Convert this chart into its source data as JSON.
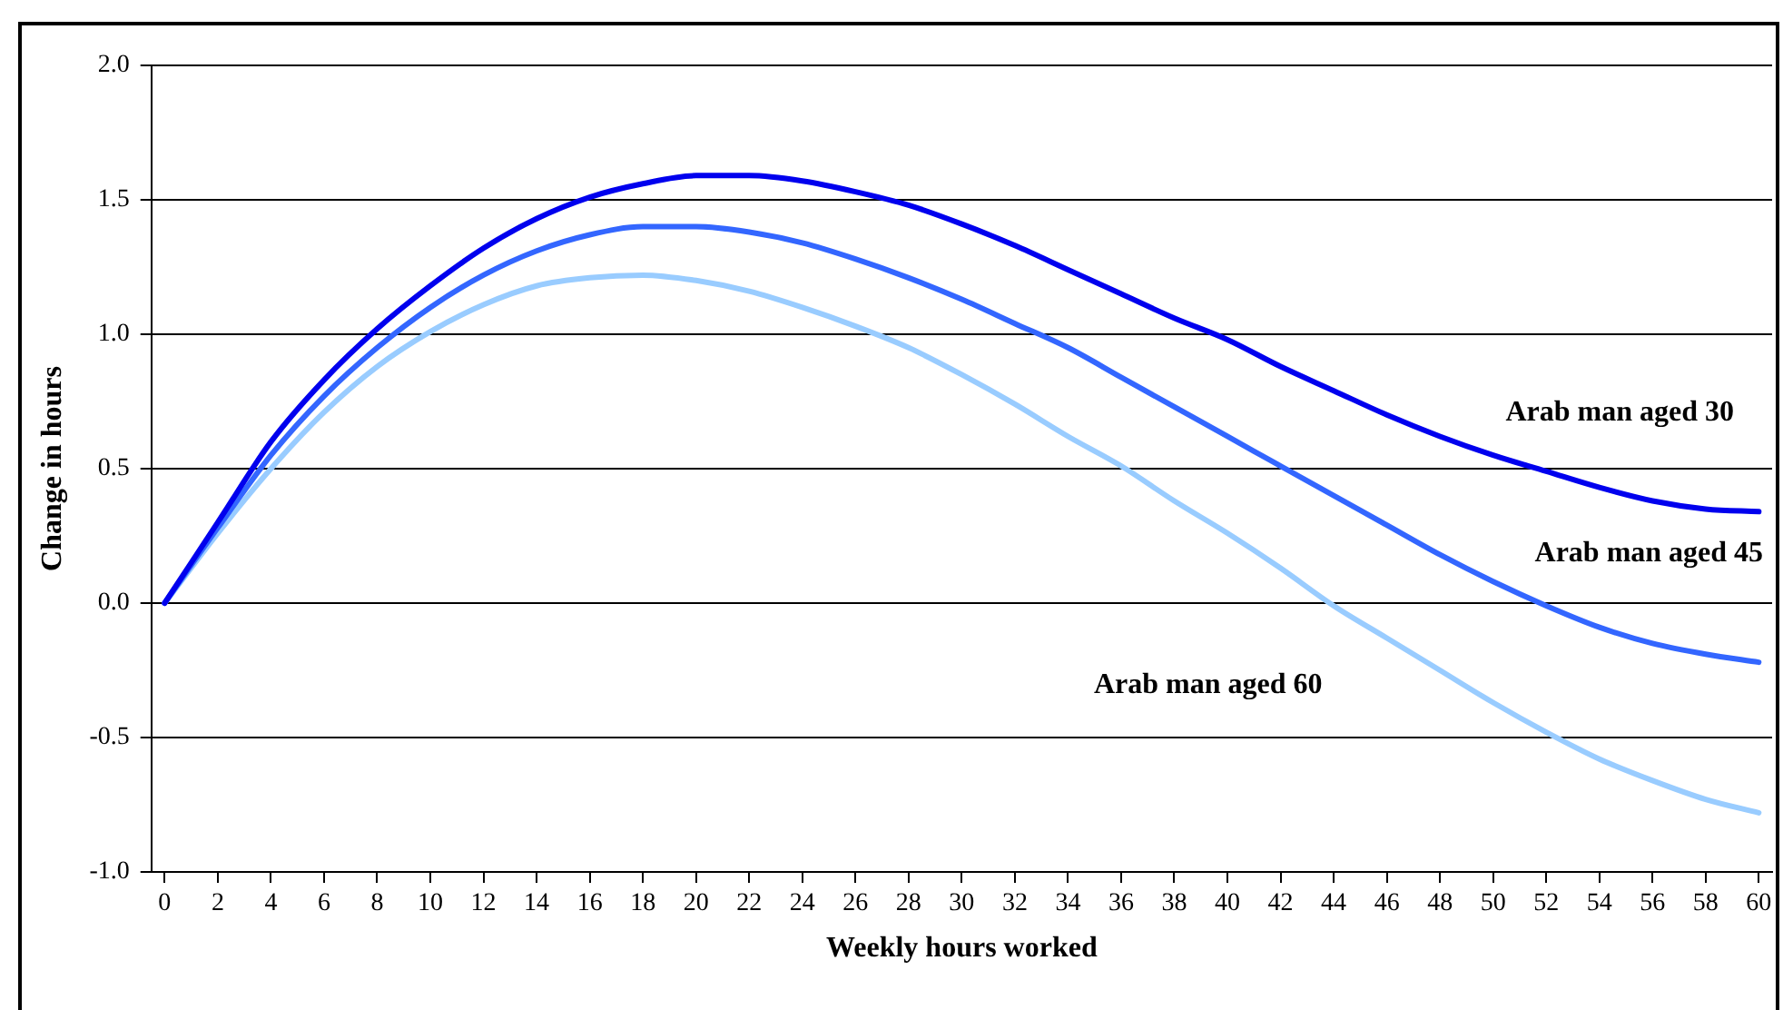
{
  "chart_data": {
    "type": "line",
    "xlabel": "Weekly hours worked",
    "ylabel": "Change in hours",
    "x": [
      0,
      2,
      4,
      6,
      8,
      10,
      12,
      14,
      16,
      18,
      20,
      22,
      24,
      26,
      28,
      30,
      32,
      34,
      36,
      38,
      40,
      42,
      44,
      46,
      48,
      50,
      52,
      54,
      56,
      58,
      60
    ],
    "series": [
      {
        "name": "Arab man aged 30",
        "color": "#0000ee",
        "values": [
          0,
          0.3,
          0.6,
          0.83,
          1.02,
          1.18,
          1.32,
          1.43,
          1.51,
          1.56,
          1.59,
          1.59,
          1.57,
          1.53,
          1.48,
          1.41,
          1.33,
          1.24,
          1.15,
          1.06,
          0.98,
          0.88,
          0.79,
          0.7,
          0.62,
          0.55,
          0.49,
          0.43,
          0.38,
          0.35,
          0.34
        ]
      },
      {
        "name": "Arab man aged 45",
        "color": "#3366ff",
        "values": [
          0,
          0.28,
          0.55,
          0.77,
          0.95,
          1.1,
          1.22,
          1.31,
          1.37,
          1.4,
          1.4,
          1.38,
          1.34,
          1.28,
          1.21,
          1.13,
          1.04,
          0.95,
          0.84,
          0.73,
          0.62,
          0.51,
          0.4,
          0.29,
          0.18,
          0.08,
          -0.01,
          -0.09,
          -0.15,
          -0.19,
          -0.22
        ]
      },
      {
        "name": "Arab man aged 60",
        "color": "#99ccff",
        "values": [
          0,
          0.26,
          0.5,
          0.71,
          0.88,
          1.01,
          1.11,
          1.18,
          1.21,
          1.22,
          1.2,
          1.16,
          1.1,
          1.03,
          0.95,
          0.85,
          0.74,
          0.62,
          0.51,
          0.38,
          0.26,
          0.13,
          -0.01,
          -0.13,
          -0.25,
          -0.37,
          -0.48,
          -0.58,
          -0.66,
          -0.73,
          -0.78
        ]
      }
    ],
    "xlim": [
      -0.5,
      60.5
    ],
    "xticks": [
      0,
      2,
      4,
      6,
      8,
      10,
      12,
      14,
      16,
      18,
      20,
      22,
      24,
      26,
      28,
      30,
      32,
      34,
      36,
      38,
      40,
      42,
      44,
      46,
      48,
      50,
      52,
      54,
      56,
      58,
      60
    ],
    "ylim": [
      -1,
      2
    ],
    "yticks": [
      {
        "value": -1,
        "label": "-1.0"
      },
      {
        "value": -0.5,
        "label": "-0.5"
      },
      {
        "value": 0,
        "label": "0.0"
      },
      {
        "value": 0.5,
        "label": "0.5"
      },
      {
        "value": 1,
        "label": "1.0"
      },
      {
        "value": 1.5,
        "label": "1.5"
      },
      {
        "value": 2,
        "label": "2.0"
      }
    ],
    "grid": "y",
    "legend": false,
    "marker": "none",
    "line_style": "solid"
  }
}
